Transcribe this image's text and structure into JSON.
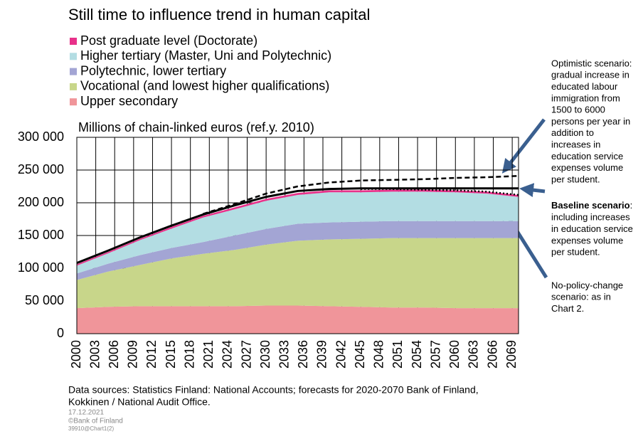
{
  "chart_data": {
    "type": "stacked_area",
    "title": "Still time to influence trend in human capital",
    "subtitle": "Millions of chain-linked euros (ref.y. 2010)",
    "x": [
      2000,
      2005,
      2010,
      2015,
      2020,
      2025,
      2030,
      2035,
      2040,
      2045,
      2050,
      2055,
      2060,
      2065,
      2070
    ],
    "series": [
      {
        "name": "Upper secondary",
        "color": "#f0959a",
        "values": [
          39000,
          41000,
          42000,
          42000,
          42000,
          42000,
          43000,
          43000,
          42000,
          41000,
          40000,
          40000,
          39000,
          39000,
          39000
        ]
      },
      {
        "name": "Vocational (and lowest higher qualifications)",
        "color": "#c8d68a",
        "values": [
          43000,
          54000,
          63000,
          73000,
          80000,
          86000,
          93000,
          99000,
          102000,
          104000,
          106000,
          106000,
          107000,
          107000,
          107000
        ]
      },
      {
        "name": "Polytechnic, lower tertiary",
        "color": "#a3a5d4",
        "values": [
          10000,
          12000,
          15000,
          16000,
          18000,
          22000,
          24000,
          26000,
          26000,
          26000,
          26000,
          26000,
          26000,
          26000,
          26000
        ]
      },
      {
        "name": "Higher tertiary (Master, Uni and Polytechnic)",
        "color": "#b3dde3",
        "values": [
          12000,
          16000,
          23000,
          29500,
          37500,
          40000,
          43000,
          44000,
          46000,
          45000,
          45000,
          45000,
          44000,
          42000,
          37000
        ]
      },
      {
        "name": "Post graduate level (Doctorate)",
        "color": "#e8318a",
        "values": [
          2000,
          2000,
          2000,
          2500,
          2500,
          3000,
          3000,
          3000,
          3000,
          3000,
          3000,
          3000,
          3000,
          3000,
          3000
        ]
      }
    ],
    "lines": [
      {
        "color": "#000000",
        "dash": "solid",
        "values": [
          108000,
          127000,
          147000,
          165000,
          182000,
          196000,
          209000,
          218000,
          221000,
          222000,
          222000,
          222000,
          222000,
          222000,
          222000
        ]
      },
      {
        "color": "#000000",
        "dash": "dashed",
        "values": [
          null,
          null,
          null,
          null,
          183000,
          198000,
          214000,
          225000,
          231000,
          234000,
          235000,
          236000,
          238000,
          239000,
          241000
        ]
      },
      {
        "color": "#000000",
        "dash": "dotted",
        "values": [
          null,
          null,
          null,
          null,
          null,
          null,
          null,
          null,
          null,
          221000,
          221000,
          220000,
          219000,
          217000,
          212000
        ]
      }
    ],
    "xlim": [
      2000,
      2070
    ],
    "xticks": [
      2000,
      2003,
      2006,
      2009,
      2012,
      2015,
      2018,
      2021,
      2024,
      2027,
      2030,
      2033,
      2036,
      2039,
      2042,
      2045,
      2048,
      2051,
      2054,
      2057,
      2060,
      2063,
      2066,
      2069
    ],
    "ylim": [
      0,
      300000
    ],
    "yticks": [
      0,
      {
        "value": 50000,
        "label": "50 000"
      },
      {
        "value": 100000,
        "label": "100 000"
      },
      {
        "value": 150000,
        "label": "150 000"
      },
      {
        "value": 200000,
        "label": "200 000"
      },
      {
        "value": 250000,
        "label": "250 000"
      },
      {
        "value": 300000,
        "label": "300 000"
      }
    ],
    "grid": true,
    "annotations": [
      {
        "lines": [
          "Optimistic scenario:",
          "gradual increase in",
          "educated labour",
          "immigration from",
          "1500 to 6000",
          "persons per year in",
          "addition to",
          "increases in",
          "education service",
          "expenses volume",
          "per student."
        ]
      },
      {
        "head": "Baseline scenario",
        "head_rest": ":",
        "lines": [
          "including increases",
          "in education service",
          "expenses volume",
          "per student."
        ]
      },
      {
        "lines": [
          "No-policy-change",
          "scenario: as in",
          "Chart 2."
        ]
      }
    ],
    "footer": {
      "source": [
        "Data sources: Statistics Finland: National Accounts; forecasts for 2020-2070 Bank of Finland,",
        "Kokkinen / National Audit Office."
      ],
      "date": "17.12.2021",
      "copyright": "©Bank of Finland",
      "code": "39910@Chart1(2)"
    }
  }
}
